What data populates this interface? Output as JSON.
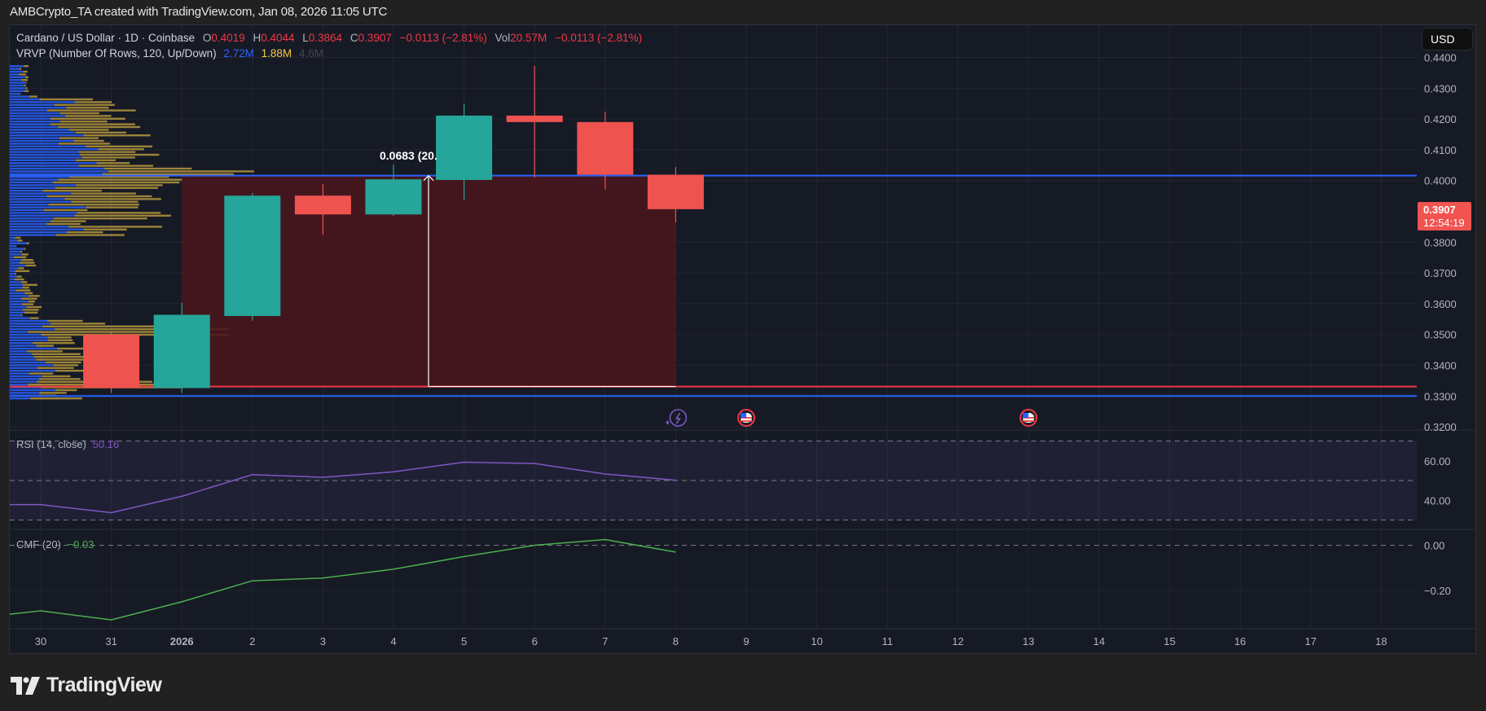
{
  "credit": "AMBCrypto_TA created with TradingView.com, Jan 08, 2026 11:05 UTC",
  "symbol": {
    "title": "Cardano / US Dollar · 1D · Coinbase",
    "o_label": "O",
    "o": "0.4019",
    "h_label": "H",
    "h": "0.4044",
    "l_label": "L",
    "l": "0.3864",
    "c_label": "C",
    "c": "0.3907",
    "change": "−0.0113 (−2.81%)",
    "vol_label": "Vol",
    "vol": "20.57M",
    "vol_change": "−0.0113 (−2.81%)"
  },
  "vrvp": {
    "label": "VRVP (Number Of Rows, 120, Up/Down)",
    "up": "2.72M",
    "down": "1.88M",
    "total": "4.6M"
  },
  "currency_button": "USD",
  "last_price": {
    "value": "0.3907",
    "countdown": "12:54:19"
  },
  "measure_label": "0.0683 (20.",
  "rsi": {
    "label": "RSI (14, close)",
    "value": "50.16"
  },
  "cmf": {
    "label": "CMF (20)",
    "value": "−0.03"
  },
  "logo_text": "TradingView",
  "colors": {
    "up": "#26a69a",
    "down": "#ef5350",
    "rsi": "#7e57c2",
    "cmf": "#4caf50",
    "hline_blue": "#2962ff",
    "hline_red": "#f23645",
    "range_fill": "#4a161d"
  },
  "chart_data": [
    {
      "type": "candlestick",
      "title": "Cardano / US Dollar · 1D · Coinbase",
      "categories": [
        "31",
        "2026",
        "2",
        "3",
        "4",
        "5",
        "6",
        "7",
        "8"
      ],
      "series": [
        {
          "name": "open",
          "values": [
            0.35,
            0.3326,
            0.356,
            0.3951,
            0.389,
            0.4002,
            0.4211,
            0.419,
            0.4019
          ]
        },
        {
          "name": "high",
          "values": [
            0.351,
            0.3603,
            0.396,
            0.3988,
            0.4052,
            0.425,
            0.4372,
            0.4224,
            0.4044
          ]
        },
        {
          "name": "low",
          "values": [
            0.331,
            0.331,
            0.3545,
            0.3824,
            0.3885,
            0.3938,
            0.4009,
            0.3972,
            0.3864
          ]
        },
        {
          "name": "close",
          "values": [
            0.3326,
            0.3564,
            0.3951,
            0.389,
            0.4004,
            0.4211,
            0.419,
            0.4019,
            0.3907
          ]
        }
      ],
      "x_axis_ticks": [
        "30",
        "31",
        "2026",
        "2",
        "3",
        "4",
        "5",
        "6",
        "7",
        "8",
        "9",
        "10",
        "11",
        "12",
        "13",
        "14",
        "15",
        "16",
        "17",
        "18"
      ],
      "y_axis_ticks": [
        "0.4400",
        "0.4300",
        "0.4200",
        "0.4100",
        "0.4000",
        "0.3800",
        "0.3700",
        "0.3600",
        "0.3500",
        "0.3400",
        "0.3300",
        "0.3200"
      ],
      "ylim": [
        0.32,
        0.44
      ],
      "horizontal_lines": [
        {
          "price": 0.4016,
          "color": "#2962ff"
        },
        {
          "price": 0.3331,
          "color": "#f23645"
        },
        {
          "price": 0.33,
          "color": "#2962ff"
        }
      ],
      "range_box": {
        "from": "2026",
        "to": "8",
        "top": 0.4016,
        "bottom": 0.3331
      },
      "measure": {
        "value": 0.0683,
        "percent_label": "20."
      },
      "events": [
        {
          "day": "8",
          "type": "earnings-flash"
        },
        {
          "day": "9",
          "type": "us-economic"
        },
        {
          "day": "13",
          "type": "us-economic"
        }
      ],
      "grid": true
    },
    {
      "type": "line",
      "title": "RSI (14, close)",
      "x": [
        "29",
        "30",
        "31",
        "2026",
        "2",
        "3",
        "4",
        "5",
        "6",
        "7",
        "8"
      ],
      "values": [
        37.8,
        37.8,
        33.7,
        42.0,
        53.0,
        51.6,
        54.4,
        59.3,
        58.6,
        53.3,
        50.16
      ],
      "bands": [
        70,
        50,
        30
      ],
      "y_axis_ticks": [
        "60.00",
        "40.00"
      ]
    },
    {
      "type": "line",
      "title": "CMF (20)",
      "x": [
        "29",
        "30",
        "31",
        "2026",
        "2",
        "3",
        "4",
        "5",
        "6",
        "7",
        "8"
      ],
      "values": [
        -0.305,
        -0.29,
        -0.33,
        -0.25,
        -0.157,
        -0.145,
        -0.106,
        -0.05,
        0.0,
        0.025,
        -0.03
      ],
      "zero_line": 0.0,
      "y_axis_ticks": [
        "0.00",
        "-0.20"
      ]
    }
  ]
}
